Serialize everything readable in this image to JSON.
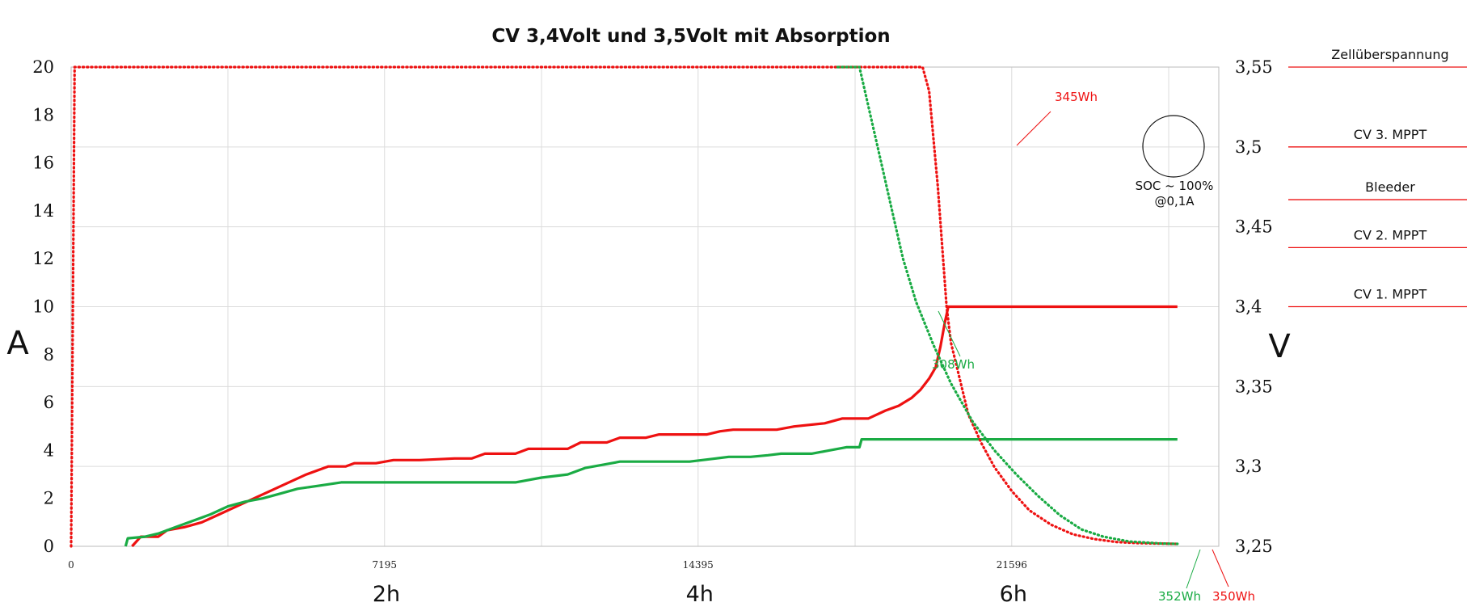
{
  "chart_data": {
    "type": "line",
    "title": "CV 3,4Volt und 3,5Volt mit Absorption",
    "y_left_label": "A",
    "y_right_label": "V",
    "y_left_range": [
      0,
      20
    ],
    "y_right_range": [
      3.25,
      3.55
    ],
    "x_range": [
      0,
      26350
    ],
    "grid": true,
    "y_left_ticks": [
      "0",
      "2",
      "4",
      "6",
      "8",
      "10",
      "12",
      "14",
      "16",
      "18",
      "20"
    ],
    "y_right_ticks": [
      "3,25",
      "3,3",
      "3,35",
      "3,4",
      "3,45",
      "3,5",
      "3,55"
    ],
    "x_ticks": [
      {
        "value": 0,
        "label": "0"
      },
      {
        "value": 7195,
        "label": "7195"
      },
      {
        "value": 14395,
        "label": "14395"
      },
      {
        "value": 21596,
        "label": "21596"
      }
    ],
    "hour_labels": [
      {
        "value": 7200,
        "label": "2h"
      },
      {
        "value": 14395,
        "label": "4h"
      },
      {
        "value": 21596,
        "label": "6h"
      }
    ],
    "series": [
      {
        "color": "#ee1111",
        "axis": "right",
        "style": "solid",
        "points": [
          [
            1400,
            3.25
          ],
          [
            1600,
            3.256
          ],
          [
            2000,
            3.256
          ],
          [
            2200,
            3.26
          ],
          [
            2600,
            3.262
          ],
          [
            3000,
            3.265
          ],
          [
            3400,
            3.27
          ],
          [
            3800,
            3.275
          ],
          [
            4200,
            3.28
          ],
          [
            4600,
            3.285
          ],
          [
            5000,
            3.29
          ],
          [
            5400,
            3.295
          ],
          [
            5900,
            3.3
          ],
          [
            6300,
            3.3
          ],
          [
            6500,
            3.302
          ],
          [
            7000,
            3.302
          ],
          [
            7400,
            3.304
          ],
          [
            8000,
            3.304
          ],
          [
            8800,
            3.305
          ],
          [
            9200,
            3.305
          ],
          [
            9500,
            3.308
          ],
          [
            10200,
            3.308
          ],
          [
            10500,
            3.311
          ],
          [
            11400,
            3.311
          ],
          [
            11700,
            3.315
          ],
          [
            12300,
            3.315
          ],
          [
            12600,
            3.318
          ],
          [
            13200,
            3.318
          ],
          [
            13500,
            3.32
          ],
          [
            14600,
            3.32
          ],
          [
            14900,
            3.322
          ],
          [
            15200,
            3.323
          ],
          [
            16200,
            3.323
          ],
          [
            16600,
            3.325
          ],
          [
            17300,
            3.327
          ],
          [
            17700,
            3.33
          ],
          [
            18300,
            3.33
          ],
          [
            18700,
            3.335
          ],
          [
            19000,
            3.338
          ],
          [
            19300,
            3.343
          ],
          [
            19500,
            3.348
          ],
          [
            19700,
            3.355
          ],
          [
            19850,
            3.362
          ],
          [
            19960,
            3.375
          ],
          [
            20060,
            3.39
          ],
          [
            20140,
            3.4
          ],
          [
            25400,
            3.4
          ]
        ]
      },
      {
        "color": "#1aab44",
        "axis": "right",
        "style": "solid",
        "points": [
          [
            1250,
            3.25
          ],
          [
            1300,
            3.255
          ],
          [
            1700,
            3.256
          ],
          [
            2000,
            3.258
          ],
          [
            2400,
            3.262
          ],
          [
            2800,
            3.266
          ],
          [
            3200,
            3.27
          ],
          [
            3600,
            3.275
          ],
          [
            4000,
            3.278
          ],
          [
            4400,
            3.28
          ],
          [
            4800,
            3.283
          ],
          [
            5200,
            3.286
          ],
          [
            5700,
            3.288
          ],
          [
            6200,
            3.29
          ],
          [
            7000,
            3.29
          ],
          [
            8000,
            3.29
          ],
          [
            10200,
            3.29
          ],
          [
            10800,
            3.293
          ],
          [
            11400,
            3.295
          ],
          [
            11800,
            3.299
          ],
          [
            12200,
            3.301
          ],
          [
            12600,
            3.303
          ],
          [
            13200,
            3.303
          ],
          [
            14200,
            3.303
          ],
          [
            14800,
            3.305
          ],
          [
            15100,
            3.306
          ],
          [
            15600,
            3.306
          ],
          [
            16000,
            3.307
          ],
          [
            16300,
            3.308
          ],
          [
            17000,
            3.308
          ],
          [
            17400,
            3.31
          ],
          [
            17800,
            3.312
          ],
          [
            18100,
            3.312
          ],
          [
            18150,
            3.317
          ],
          [
            25400,
            3.317
          ]
        ]
      },
      {
        "color": "#ee1111",
        "axis": "left",
        "style": "dotted",
        "points": [
          [
            0,
            0
          ],
          [
            80,
            20
          ],
          [
            19550,
            20
          ],
          [
            19700,
            19
          ],
          [
            19800,
            17
          ],
          [
            19900,
            15
          ],
          [
            20000,
            12.5
          ],
          [
            20100,
            10
          ],
          [
            20200,
            8.5
          ],
          [
            20400,
            7
          ],
          [
            20600,
            5.5
          ],
          [
            20900,
            4.3
          ],
          [
            21200,
            3.3
          ],
          [
            21600,
            2.3
          ],
          [
            22000,
            1.5
          ],
          [
            22500,
            0.9
          ],
          [
            23000,
            0.5
          ],
          [
            23500,
            0.3
          ],
          [
            24000,
            0.18
          ],
          [
            24500,
            0.13
          ],
          [
            25400,
            0.1
          ]
        ]
      },
      {
        "color": "#1aab44",
        "axis": "left",
        "style": "dotted",
        "points": [
          [
            17600,
            20
          ],
          [
            18100,
            20
          ],
          [
            18350,
            18
          ],
          [
            18600,
            16
          ],
          [
            18850,
            14
          ],
          [
            19100,
            12
          ],
          [
            19400,
            10.2
          ],
          [
            19800,
            8.4
          ],
          [
            20200,
            6.8
          ],
          [
            20700,
            5.2
          ],
          [
            21200,
            4
          ],
          [
            21700,
            3
          ],
          [
            22200,
            2.1
          ],
          [
            22700,
            1.3
          ],
          [
            23200,
            0.7
          ],
          [
            23700,
            0.4
          ],
          [
            24300,
            0.2
          ],
          [
            25000,
            0.12
          ],
          [
            25400,
            0.1
          ]
        ]
      }
    ],
    "annotations": {
      "wh345": "345Wh",
      "wh308": "308Wh",
      "wh352": "352Wh",
      "wh350": "350Wh",
      "soc_line1": "SOC ~ 100%",
      "soc_line2": "@0,1A"
    },
    "side_labels": [
      {
        "text": "Zellüberspannung",
        "volt": 3.55
      },
      {
        "text": "CV 3. MPPT",
        "volt": 3.5
      },
      {
        "text": "Bleeder",
        "volt": 3.467
      },
      {
        "text": "CV 2. MPPT",
        "volt": 3.437
      },
      {
        "text": "CV 1. MPPT",
        "volt": 3.4
      }
    ]
  },
  "colors": {
    "red": "#ee1111",
    "green": "#1aab44",
    "grid": "#dcdcdc",
    "axis": "#bbbbbb"
  }
}
